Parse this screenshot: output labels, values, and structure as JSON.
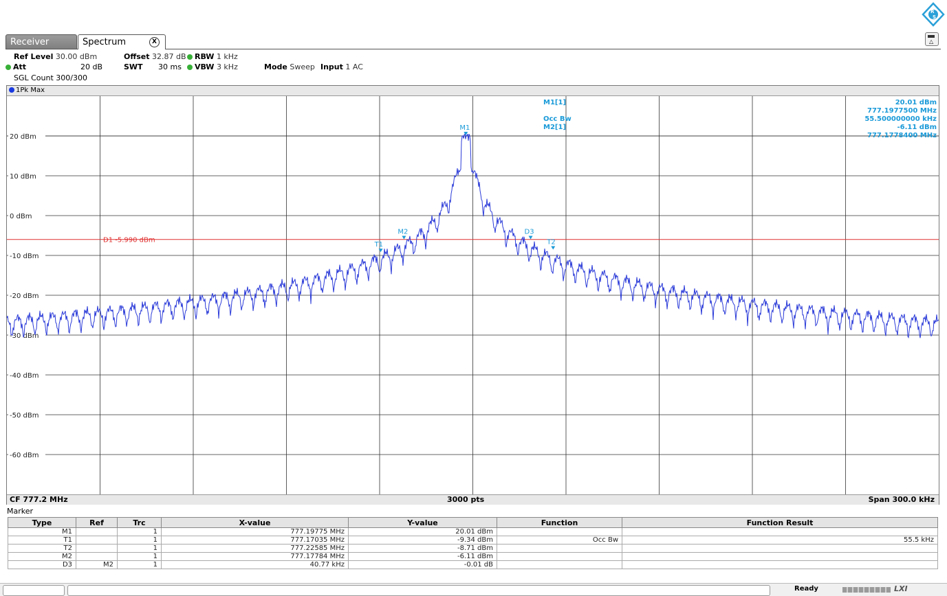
{
  "tabs": [
    {
      "label": "Receiver"
    },
    {
      "label": "Spectrum",
      "close_symbol": "X"
    }
  ],
  "settings": {
    "ref_level_label": "Ref Level",
    "ref_level_value": "30.00 dBm",
    "offset_label": "Offset",
    "offset_value": "32.87 dB",
    "rbw_label": "RBW",
    "rbw_value": "1 kHz",
    "att_label": "Att",
    "att_value": "20 dB",
    "swt_label": "SWT",
    "swt_value": "30 ms",
    "vbw_label": "VBW",
    "vbw_value": "3 kHz",
    "mode_label": "Mode",
    "mode_value": "Sweep",
    "input_label": "Input",
    "input_value": "1 AC",
    "sgl_count": "SGL Count 300/300"
  },
  "trace_label": "1Pk Max",
  "chart_data": {
    "type": "line",
    "y_unit": "dBm",
    "ylim": [
      -70,
      30
    ],
    "y_tick_labels": [
      "20 dBm",
      "10 dBm",
      "0 dBm",
      "-10 dBm",
      "-20 dBm",
      "-30 dBm",
      "-40 dBm",
      "-50 dBm",
      "-60 dBm"
    ],
    "y_ticks": [
      20,
      10,
      0,
      -10,
      -20,
      -30,
      -40,
      -50,
      -60
    ],
    "x_center_mhz": 777.2,
    "x_span_khz": 300.0,
    "xlim_mhz": [
      777.05,
      777.35
    ],
    "grid": true,
    "center_label": "CF 777.2 MHz",
    "points_label": "3000 pts",
    "span_label": "Span 300.0 kHz",
    "display_line": {
      "label": "D1  -5.990 dBm",
      "y": -5.99,
      "color": "#e03030"
    },
    "markers": [
      {
        "name": "M1",
        "x_mhz": 777.19775,
        "y_dbm": 20.01
      },
      {
        "name": "M2",
        "x_mhz": 777.17784,
        "y_dbm": -6.11
      },
      {
        "name": "T1",
        "x_mhz": 777.17035,
        "y_dbm": -9.34
      },
      {
        "name": "T2",
        "x_mhz": 777.22585,
        "y_dbm": -8.71
      },
      {
        "name": "D3",
        "x_mhz": 777.21861,
        "y_dbm": -6.12
      }
    ],
    "trace_color": "#2a3ad8"
  },
  "marker_info": {
    "rows": [
      {
        "label": "M1[1]",
        "value": "20.01 dBm"
      },
      {
        "label": "",
        "value": "777.1977500 MHz"
      },
      {
        "label": "Occ Bw",
        "value": "55.500000000 kHz"
      },
      {
        "label": "M2[1]",
        "value": "-6.11 dBm"
      },
      {
        "label": "",
        "value": "777.1778400 MHz"
      }
    ]
  },
  "marker_table": {
    "title": "Marker",
    "headers": [
      "Type",
      "Ref",
      "Trc",
      "X-value",
      "Y-value",
      "Function",
      "Function Result"
    ],
    "rows": [
      [
        "M1",
        "",
        "1",
        "777.19775 MHz",
        "20.01 dBm",
        "",
        ""
      ],
      [
        "T1",
        "",
        "1",
        "777.17035 MHz",
        "-9.34 dBm",
        "Occ Bw",
        "55.5 kHz"
      ],
      [
        "T2",
        "",
        "1",
        "777.22585 MHz",
        "-8.71 dBm",
        "",
        ""
      ],
      [
        "M2",
        "",
        "1",
        "777.17784 MHz",
        "-6.11 dBm",
        "",
        ""
      ],
      [
        "D3",
        "M2",
        "1",
        "40.77 kHz",
        "-0.01 dB",
        "",
        ""
      ]
    ]
  },
  "status": {
    "text": "Ready",
    "lxi": "LXI"
  },
  "colors": {
    "marker_text": "#1a9ad8",
    "display_line": "#e03030",
    "trace": "#2a3ad8"
  }
}
